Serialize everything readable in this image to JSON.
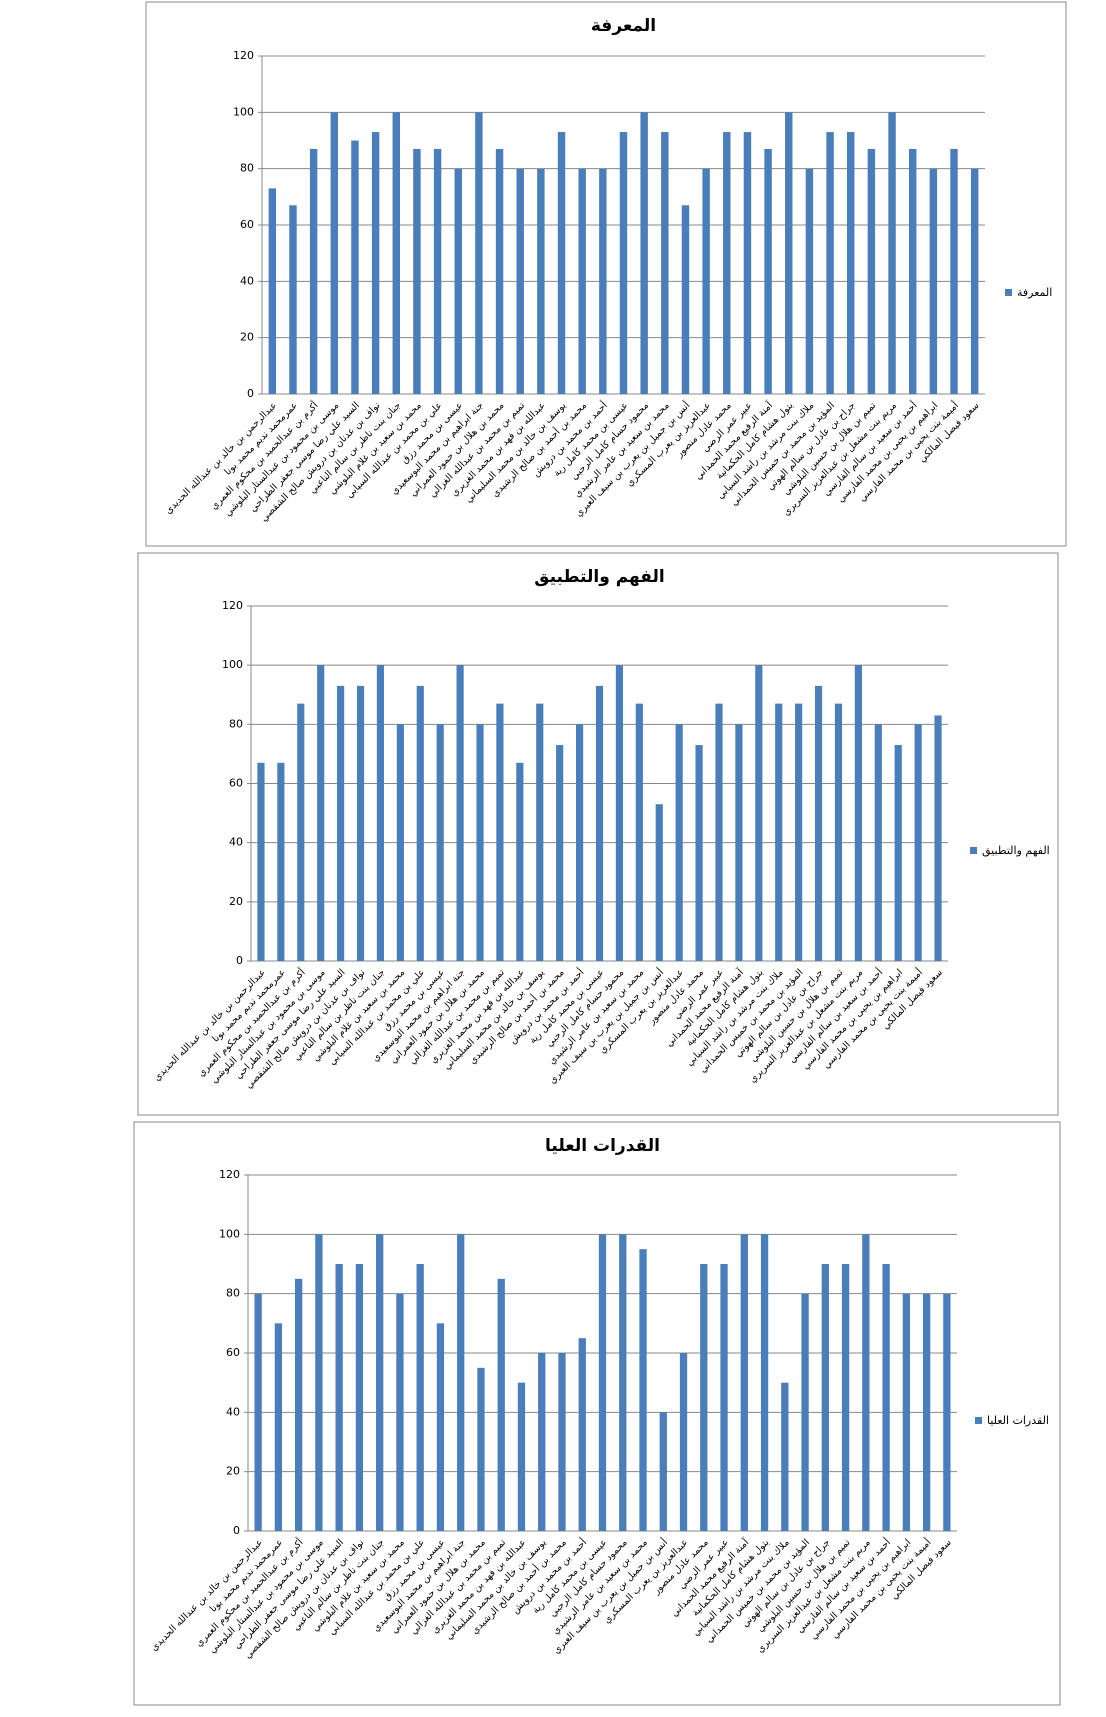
{
  "chart_data": [
    {
      "type": "bar",
      "title": "المعرفة",
      "categories": [
        "عبدالرحمن بن خالد بن عبدالله الحديدي",
        "عمرمحمد نديم محمد بونا",
        "أكرم بن عبدالحميد بن محكوم العمري",
        "موسى بن محمود بن عبدالستار البلوشي",
        "السيد علي رضا موسى جعفر الطراحي",
        "نواف بن عدنان بن درويش صالح الشقصي",
        "جنان بنت ناظر بن سالم الناعبي",
        "محمد بن سعيد بن غلام البلوشي",
        "علي بن محمد بن عبدالله السيابي",
        "عيسى بن محمد رزق",
        "جنة ابراهيم بن محمد البوسعيدي",
        "محمد بن هلال بن حمود العمراني",
        "تميم بن محمد بن عبدالله الغزالي",
        "عبدالله بن فهد بن محمد الغزيري",
        "يوسف بن خالد بن محمد السليماني",
        "محمد بن أحمد بن صالح الرشيدي",
        "أحمد بن محمد بن درويش",
        "عيسى بن محمد كامل رية",
        "محمود حسام كامل الرحبي",
        "محمد بن سعيد بن عامر الرشيدي",
        "أنس بن جميل بن يعرب بن سيف العبري",
        "عبدالعزيز بن يعرب المسكري",
        "محمد عادل منصور",
        "عبير عمر الرضي",
        "آمنة الرفيع محمد الحمداني",
        "بتول هشام كامل الحكمانية",
        "ملاك بنت مرشد بن راشد السيابي",
        "المؤيد بن محمد بن خميس الحمداني",
        "جراح بن عادل بن سالم الهوتي",
        "تميم بن هلال بن حسين البلوشي",
        "مريم بنت مشعل بن عبدالعزيز السريري",
        "أحمد بن سعيد بن سالم الفارسي",
        "ابراهيم بن يحيى بن محمد الفارسي",
        "أميمة بنت يحيى بن محمد الفارسي",
        "سعود فيصل المالكي"
      ],
      "series": [
        {
          "name": "المعرفة",
          "color": "#4a7ebb",
          "values": [
            73,
            67,
            87,
            100,
            90,
            93,
            100,
            87,
            87,
            80,
            100,
            87,
            80,
            80,
            93,
            80,
            80,
            93,
            100,
            93,
            67,
            80,
            93,
            93,
            87,
            100,
            80,
            93,
            93,
            87,
            100,
            87,
            80,
            87,
            80
          ]
        }
      ],
      "ylim": [
        0,
        120
      ],
      "yticks": [
        0,
        20,
        40,
        60,
        80,
        100,
        120
      ],
      "grid": true,
      "legend": "right"
    },
    {
      "type": "bar",
      "title": "الفهم والتطبيق",
      "categories": [
        "عبدالرحمن بن خالد بن عبدالله الحديدي",
        "عمرمحمد نديم محمد بونا",
        "أكرم بن عبدالحميد بن محكوم العمري",
        "موسى بن محمود بن عبدالستار البلوشي",
        "السيد علي رضا موسى جعفر الطراحي",
        "نواف بن عدنان بن درويش صالح الشقصي",
        "جنان بنت ناظر بن سالم الناعبي",
        "محمد بن سعيد بن غلام البلوشي",
        "علي بن محمد بن عبدالله السيابي",
        "عيسى بن محمد رزق",
        "جنة ابراهيم بن محمد البوسعيدي",
        "محمد بن هلال بن حمود العمراني",
        "تميم بن محمد بن عبدالله الغزالي",
        "عبدالله بن فهد بن محمد الغزيري",
        "يوسف بن خالد بن محمد السليماني",
        "محمد بن أحمد بن صالح الرشيدي",
        "أحمد بن محمد بن درويش",
        "عيسى بن محمد كامل رية",
        "محمود حسام كامل الرحبي",
        "محمد بن سعيد بن عامر الرشيدي",
        "أنس بن جميل بن يعرب بن سيف العبري",
        "عبدالعزيز بن يعرب المسكري",
        "محمد عادل منصور",
        "عبير عمر الرضي",
        "آمنة الرفيع محمد الحمداني",
        "بتول هشام كامل الحكمانية",
        "ملاك بنت مرشد بن راشد السيابي",
        "المؤيد بن محمد بن خميس الحمداني",
        "جراح بن عادل بن سالم الهوتي",
        "تميم بن هلال بن حسين البلوشي",
        "مريم بنت مشعل بن عبدالعزيز السريري",
        "أحمد بن سعيد بن سالم الفارسي",
        "ابراهيم بن يحيى بن محمد الفارسي",
        "أميمة بنت يحيى بن محمد الفارسي",
        "سعود فيصل المالكي"
      ],
      "series": [
        {
          "name": "الفهم والتطبيق",
          "color": "#4a7ebb",
          "values": [
            67,
            67,
            87,
            100,
            93,
            93,
            100,
            80,
            93,
            80,
            100,
            80,
            87,
            67,
            87,
            73,
            80,
            93,
            100,
            87,
            53,
            80,
            73,
            87,
            80,
            100,
            87,
            87,
            93,
            87,
            100,
            80,
            73,
            80,
            83
          ]
        }
      ],
      "ylim": [
        0,
        120
      ],
      "yticks": [
        0,
        20,
        40,
        60,
        80,
        100,
        120
      ],
      "grid": true,
      "legend": "right"
    },
    {
      "type": "bar",
      "title": "القدرات العليا",
      "categories": [
        "عبدالرحمن بن خالد بن عبدالله الحديدي",
        "عمرمحمد نديم محمد بونا",
        "أكرم بن عبدالحميد بن محكوم العمري",
        "موسى بن محمود بن عبدالستار البلوشي",
        "السيد علي رضا موسى جعفر الطراحي",
        "نواف بن عدنان بن درويش صالح الشقصي",
        "جنان بنت ناظر بن سالم الناعبي",
        "محمد بن سعيد بن غلام البلوشي",
        "علي بن محمد بن عبدالله السيابي",
        "عيسى بن محمد رزق",
        "جنة ابراهيم بن محمد البوسعيدي",
        "محمد بن هلال بن حمود العمراني",
        "تميم بن محمد بن عبدالله الغزالي",
        "عبدالله بن فهد بن محمد الغزيري",
        "يوسف بن خالد بن محمد السليماني",
        "محمد بن أحمد بن صالح الرشيدي",
        "أحمد بن محمد بن درويش",
        "عيسى بن محمد كامل رية",
        "محمود حسام كامل الرحبي",
        "محمد بن سعيد بن عامر الرشيدي",
        "أنس بن جميل بن يعرب بن سيف العبري",
        "عبدالعزيز بن يعرب المسكري",
        "محمد عادل منصور",
        "عبير عمر الرضي",
        "آمنة الرفيع محمد الحمداني",
        "بتول هشام كامل الحكمانية",
        "ملاك بنت مرشد بن راشد السيابي",
        "المؤيد بن محمد بن خميس الحمداني",
        "جراح بن عادل بن سالم الهوتي",
        "تميم بن هلال بن حسين البلوشي",
        "مريم بنت مشعل بن عبدالعزيز السريري",
        "أحمد بن سعيد بن سالم الفارسي",
        "ابراهيم بن يحيى بن محمد الفارسي",
        "أميمة بنت يحيى بن محمد الفارسي",
        "سعود فيصل المالكي"
      ],
      "series": [
        {
          "name": "القدرات العليا",
          "color": "#4a7ebb",
          "values": [
            80,
            70,
            85,
            100,
            90,
            90,
            100,
            80,
            90,
            70,
            100,
            55,
            85,
            50,
            60,
            60,
            65,
            100,
            100,
            95,
            40,
            60,
            90,
            90,
            100,
            100,
            50,
            80,
            90,
            90,
            100,
            90,
            80,
            80,
            80
          ]
        }
      ],
      "ylim": [
        0,
        120
      ],
      "yticks": [
        0,
        20,
        40,
        60,
        80,
        100,
        120
      ],
      "grid": true,
      "legend": "right"
    }
  ]
}
